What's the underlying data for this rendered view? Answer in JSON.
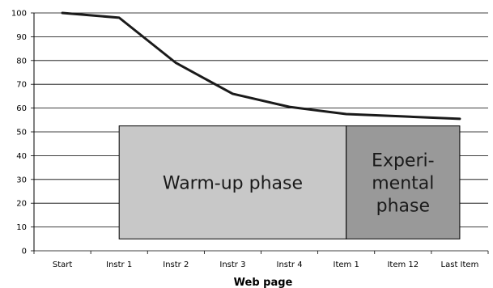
{
  "chart_data": {
    "type": "line",
    "title": "",
    "xlabel": "Web page",
    "ylabel": "",
    "ylim": [
      0,
      100
    ],
    "yticks": [
      0,
      10,
      20,
      30,
      40,
      50,
      60,
      70,
      80,
      90,
      100
    ],
    "grid": "horizontal",
    "categories": [
      "Start",
      "Instr 1",
      "Instr 2",
      "Instr 3",
      "Instr 4",
      "Item 1",
      "Item 12",
      "Last Item"
    ],
    "series": [
      {
        "values": [
          100,
          98,
          79,
          66,
          60.5,
          57.5,
          56.5,
          55.5
        ],
        "color": "#1a1a1a"
      }
    ],
    "annotations": [
      {
        "label_lines": [
          "Warm-up phase"
        ],
        "x_from": "Instr 1",
        "x_to": "Item 1",
        "y_from": 5,
        "y_to": 52.5,
        "color": "#c8c8c8"
      },
      {
        "label_lines": [
          "Experi-",
          "mental",
          "phase"
        ],
        "x_from": "Item 1",
        "x_to": "Last Item",
        "y_from": 5,
        "y_to": 52.5,
        "color": "#999999"
      }
    ]
  }
}
